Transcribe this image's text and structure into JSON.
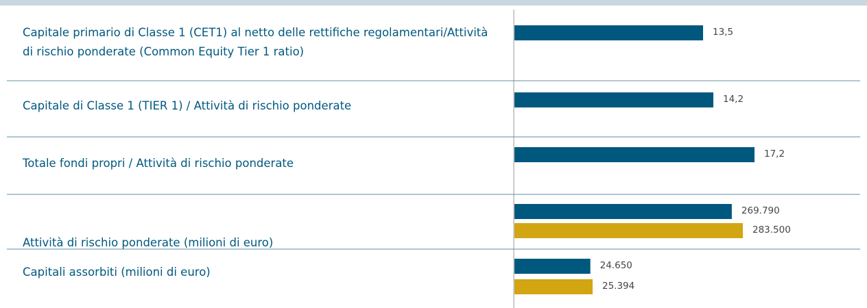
{
  "chart_data": {
    "type": "bar",
    "categories": [
      "Capitale primario di Classe 1 (CET1) al netto delle rettifiche regolamentari/Attività di rischio ponderate (Common Equity Tier 1 ratio)",
      "Capitale di Classe 1 (TIER 1) / Attività di rischio ponderate",
      "Totale fondi propri / Attività di rischio ponderate",
      "Attività di rischio ponderate (milioni di euro)",
      "Capitali assorbiti (milioni di euro)"
    ],
    "series": [
      {
        "color": "#00587f",
        "values": [
          13.5,
          14.2,
          17.2,
          269790,
          24650
        ],
        "value_labels": [
          "13,5",
          "14,2",
          "17,2",
          "269.790",
          "24.650"
        ]
      },
      {
        "color": "#d2a512",
        "values": [
          null,
          null,
          null,
          283500,
          25394
        ],
        "value_labels": [
          null,
          null,
          null,
          "283.500",
          "25.394"
        ]
      }
    ]
  }
}
